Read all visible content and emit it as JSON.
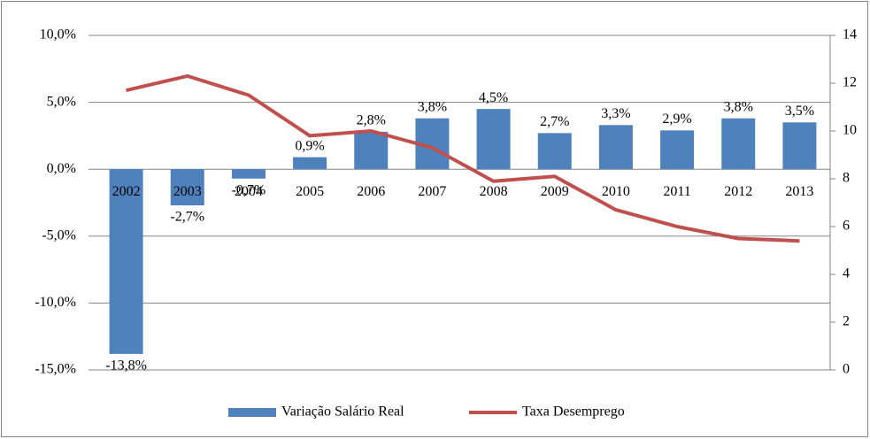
{
  "chart_data": {
    "type": "combo",
    "categories": [
      "2002",
      "2003",
      "2004",
      "2005",
      "2006",
      "2007",
      "2008",
      "2009",
      "2010",
      "2011",
      "2012",
      "2013"
    ],
    "series": [
      {
        "name": "Variação Salário Real",
        "type": "bar",
        "color": "#4f81bd",
        "values": [
          -13.8,
          -2.7,
          -0.7,
          0.9,
          2.8,
          3.8,
          4.5,
          2.7,
          3.3,
          2.9,
          3.8,
          3.5
        ],
        "value_labels": [
          "-13,8%",
          "-2,7%",
          "-0,7%",
          "0,9%",
          "2,8%",
          "3,8%",
          "4,5%",
          "2,7%",
          "3,3%",
          "2,9%",
          "3,8%",
          "3,5%"
        ]
      },
      {
        "name": "Taxa Desemprego",
        "type": "line",
        "axis": "y2",
        "color": "#c0504d",
        "values": [
          11.7,
          12.3,
          11.5,
          9.8,
          10.0,
          9.3,
          7.9,
          8.1,
          6.7,
          6.0,
          5.5,
          5.4
        ]
      }
    ],
    "ylim": [
      -15,
      10
    ],
    "yticks": [
      {
        "value": -15,
        "label": "-15,0%"
      },
      {
        "value": -10,
        "label": "-10,0%"
      },
      {
        "value": -5,
        "label": "-5,0%"
      },
      {
        "value": 0,
        "label": "0,0%"
      },
      {
        "value": 5,
        "label": "5,0%"
      },
      {
        "value": 10,
        "label": "10,0%"
      }
    ],
    "y2lim": [
      0,
      14
    ],
    "y2ticks": [
      0,
      2,
      4,
      6,
      8,
      10,
      12,
      14
    ],
    "grid": true,
    "legend": "bottom"
  }
}
